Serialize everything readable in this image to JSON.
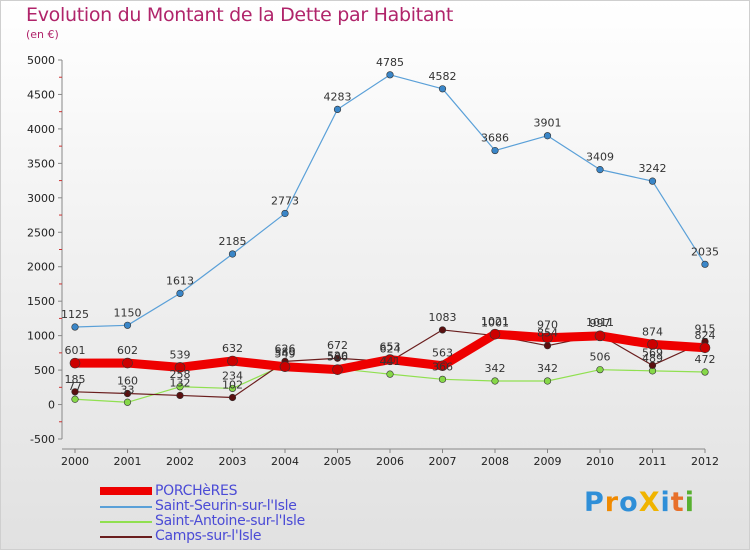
{
  "title": "Evolution du Montant de la Dette par Habitant",
  "unit_label": "(en €)",
  "logo": {
    "text": "ProXiti",
    "letters": [
      "P",
      "r",
      "o",
      "X",
      "i",
      "t",
      "i"
    ],
    "colors": [
      "#2f8fd8",
      "#f08a00",
      "#2f8fd8",
      "#f0b400",
      "#2f8fd8",
      "#e8702a",
      "#58b030"
    ]
  },
  "chart_data": {
    "type": "line",
    "title": "Evolution du Montant de la Dette par Habitant",
    "xlabel": "",
    "ylabel": "(en €)",
    "x": [
      "2000",
      "2001",
      "2002",
      "2003",
      "2004",
      "2005",
      "2006",
      "2007",
      "2008",
      "2009",
      "2010",
      "2011",
      "2012"
    ],
    "ylim": [
      -500,
      5000
    ],
    "yticks": [
      "-500",
      "0",
      "500",
      "1000",
      "1500",
      "2000",
      "2500",
      "3000",
      "3500",
      "4000",
      "4500",
      "5000"
    ],
    "grid": false,
    "legend_position": "bottom-left",
    "series": [
      {
        "name": "PORCHèRES",
        "color": "#ee0000",
        "values": [
          601,
          602,
          539,
          632,
          549,
          506,
          653,
          563,
          1021,
          970,
          997,
          874,
          824
        ],
        "labels": [
          "601",
          "602",
          "539",
          "632",
          "549",
          "506",
          "653",
          "563",
          "1021",
          "970",
          "997",
          "874",
          "824"
        ]
      },
      {
        "name": "Saint-Seurin-sur-l'Isle",
        "color": "#5aa0d8",
        "values": [
          1125,
          1150,
          1613,
          2185,
          2773,
          4283,
          4785,
          4582,
          3686,
          3901,
          3409,
          3242,
          2035
        ],
        "labels": [
          "1125",
          "1150",
          "1613",
          "2185",
          "2773",
          "4283",
          "4785",
          "4582",
          "3686",
          "3901",
          "3409",
          "3242",
          "2035"
        ]
      },
      {
        "name": "Saint-Antoine-sur-l'Isle",
        "color": "#90e050",
        "values": [
          77,
          33,
          258,
          234,
          580,
          520,
          441,
          366,
          342,
          342,
          506,
          489,
          472
        ],
        "labels": [
          "77",
          "33",
          "258",
          "234",
          "580",
          "520",
          "441",
          "366",
          "342",
          "342",
          "506",
          "489",
          "472"
        ]
      },
      {
        "name": "Camps-sur-l'Isle",
        "color": "#6a1e1e",
        "values": [
          185,
          160,
          132,
          102,
          626,
          672,
          624,
          1083,
          1001,
          854,
          1011,
          569,
          915
        ],
        "labels": [
          "185",
          "160",
          "132",
          "102",
          "626",
          "672",
          "624",
          "1083",
          "1001",
          "854",
          "1011",
          "569",
          "915"
        ]
      }
    ]
  }
}
